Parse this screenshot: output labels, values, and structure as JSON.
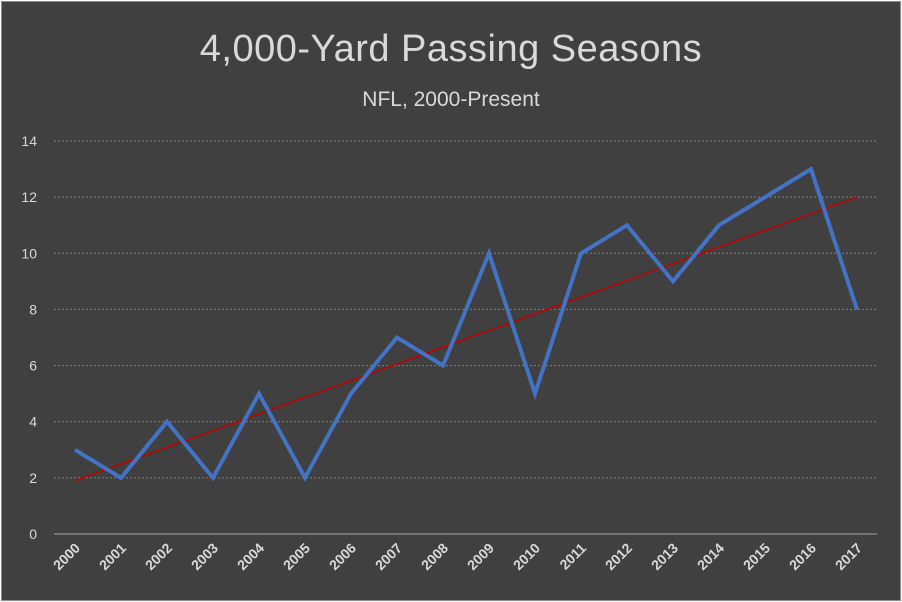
{
  "chart_data": {
    "type": "line",
    "title": "4,000-Yard Passing Seasons",
    "subtitle": "NFL, 2000-Present",
    "categories": [
      "2000",
      "2001",
      "2002",
      "2003",
      "2004",
      "2005",
      "2006",
      "2007",
      "2008",
      "2009",
      "2010",
      "2011",
      "2012",
      "2013",
      "2014",
      "2015",
      "2016",
      "2017"
    ],
    "series": [
      {
        "values": [
          3,
          2,
          4,
          2,
          5,
          2,
          5,
          7,
          6,
          10,
          5,
          10,
          11,
          9,
          11,
          12,
          13,
          8
        ]
      }
    ],
    "trendline": {
      "type": "linear",
      "start": 1.9,
      "end": 12
    },
    "ylim": [
      0,
      14
    ],
    "yticks": [
      0,
      2,
      4,
      6,
      8,
      10,
      12,
      14
    ],
    "grid": true,
    "colors": {
      "background": "#404040",
      "series": "#4472c4",
      "trendline": "#c00000",
      "text": "#d9d9d9",
      "grid": "#7f7f7f"
    }
  }
}
